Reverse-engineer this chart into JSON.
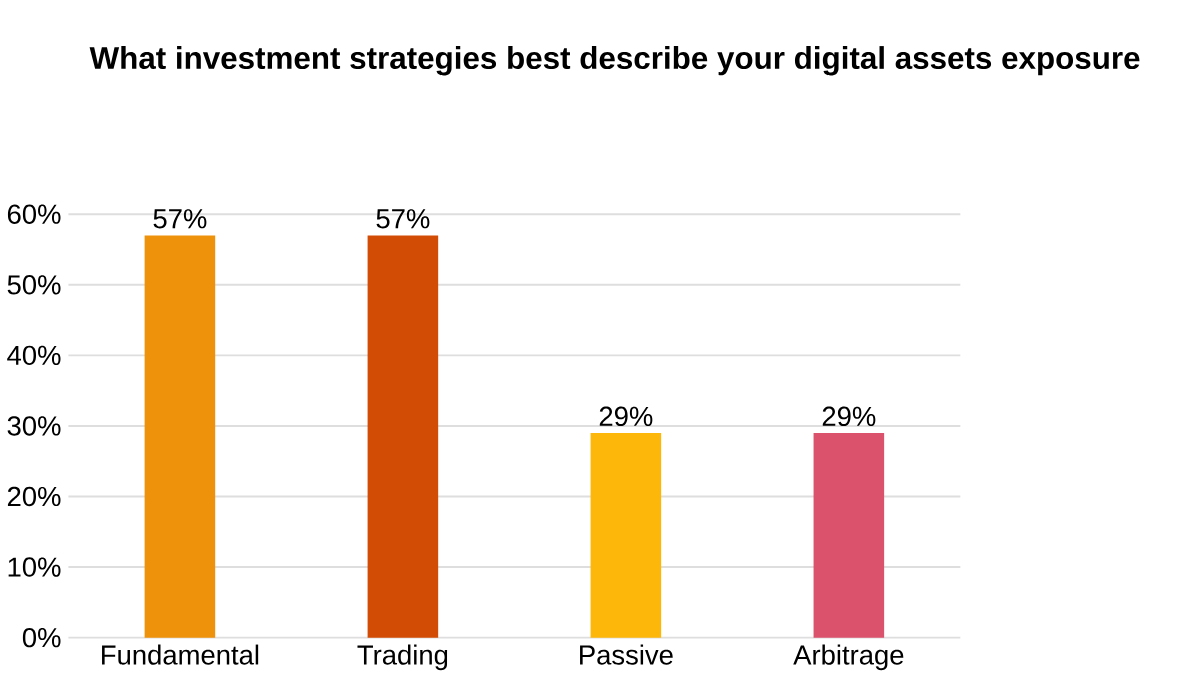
{
  "chart_data": {
    "type": "bar",
    "title": "What investment strategies best describe your digital assets exposure",
    "categories": [
      "Fundamental",
      "Trading",
      "Passive",
      "Arbitrage"
    ],
    "values": [
      57,
      57,
      29,
      29
    ],
    "colors": [
      "#ee920b",
      "#d34c05",
      "#fdb60a",
      "#db526c"
    ],
    "value_labels": [
      "57%",
      "57%",
      "29%",
      "29%"
    ],
    "ylim": [
      0,
      60
    ],
    "yticks": [
      {
        "value": 0,
        "label": "0%"
      },
      {
        "value": 10,
        "label": "10%"
      },
      {
        "value": 20,
        "label": "20%"
      },
      {
        "value": 30,
        "label": "30%"
      },
      {
        "value": 40,
        "label": "40%"
      },
      {
        "value": 50,
        "label": "50%"
      },
      {
        "value": 60,
        "label": "60%"
      }
    ],
    "grid": "y"
  }
}
